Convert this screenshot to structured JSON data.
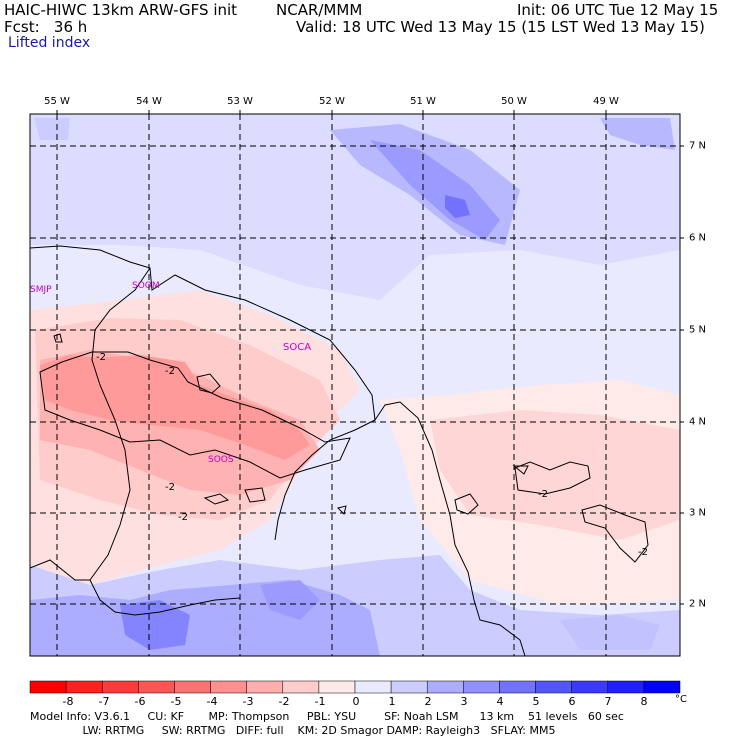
{
  "header": {
    "title": "HAIC-HIWC 13km ARW-GFS init",
    "org": "NCAR/MMM",
    "init": "Init: 06 UTC Tue 12 May 15",
    "fcst": "Fcst:   36 h",
    "valid": "Valid: 18 UTC Wed 13 May 15 (15 LST Wed 13 May 15)",
    "field": "Lifted index"
  },
  "map": {
    "lon_labels": [
      "55 W",
      "54 W",
      "53 W",
      "52 W",
      "51 W",
      "50 W",
      "49 W"
    ],
    "lat_labels": [
      "7 N",
      "6 N",
      "5 N",
      "4 N",
      "3 N",
      "2 N"
    ],
    "stations": [
      "SMJP",
      "SOOM",
      "SOCA",
      "SOOS"
    ],
    "contour_label": "-2",
    "colors": {
      "land_outline": "#000000",
      "station": "#c000c0"
    }
  },
  "colorbar": {
    "labels": [
      "-8",
      "-7",
      "-6",
      "-5",
      "-4",
      "-3",
      "-2",
      "-1",
      "0",
      "1",
      "2",
      "3",
      "4",
      "5",
      "6",
      "7",
      "8"
    ],
    "unit": "°C",
    "colors": [
      "#ff0000",
      "#ff2020",
      "#ff3a3a",
      "#ff5555",
      "#ff7272",
      "#ff9090",
      "#ffadad",
      "#ffcccc",
      "#ffeaea",
      "#eaeaff",
      "#ccccff",
      "#adadff",
      "#9090ff",
      "#7272ff",
      "#5555ff",
      "#3a3aff",
      "#2020ff",
      "#0000ff"
    ]
  },
  "footer": {
    "line1": "Model Info: V3.6.1     CU: KF       MP: Thompson     PBL: YSU        SF: Noah LSM      13 km    51 levels   60 sec",
    "line2": "               LW: RRTMG     SW: RRTMG   DIFF: full    KM: 2D Smagor DAMP: Rayleigh3   SFLAY: MM5"
  }
}
